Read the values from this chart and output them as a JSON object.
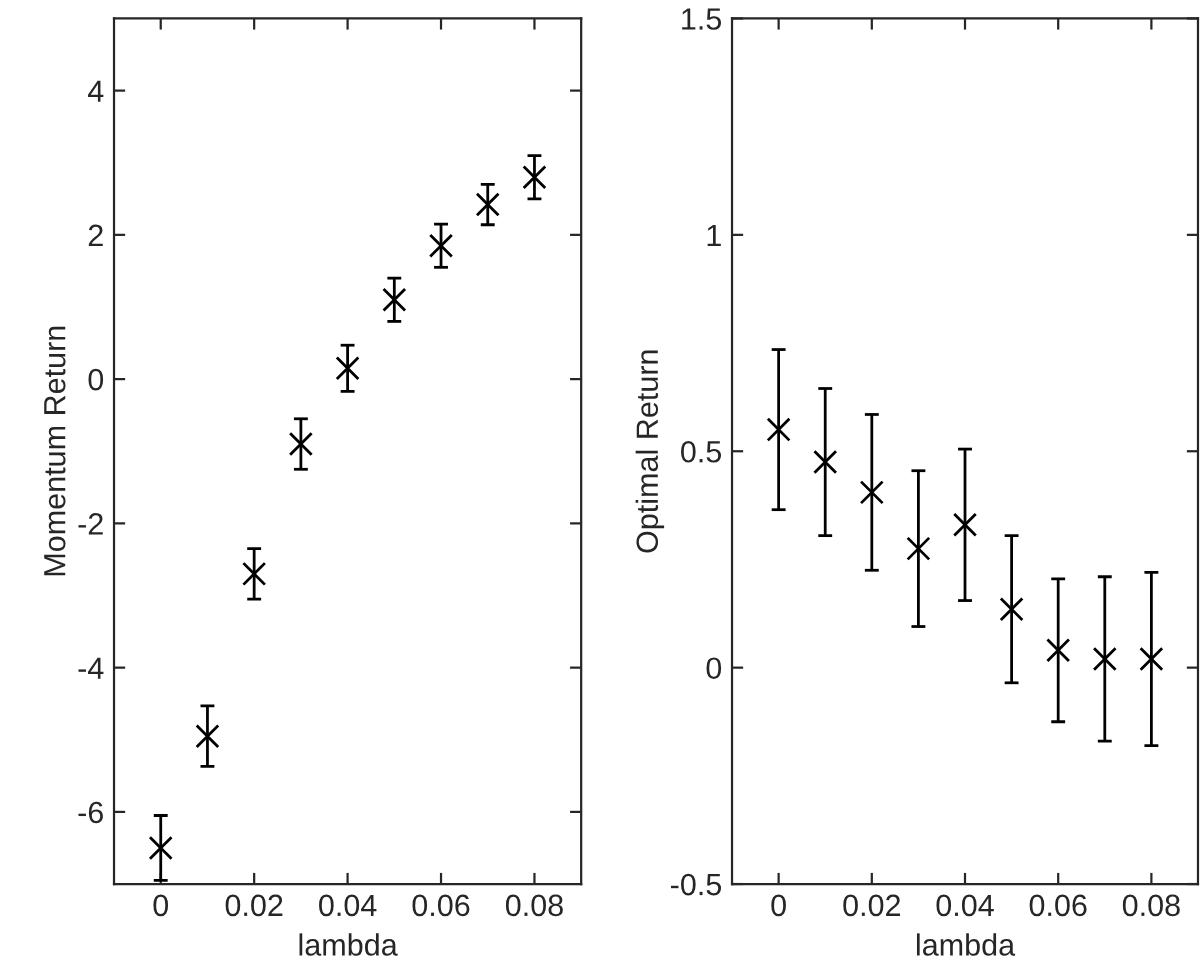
{
  "chart_data": [
    {
      "type": "scatter",
      "xlabel": "lambda",
      "ylabel": "Momentum Return",
      "x": [
        0,
        0.01,
        0.02,
        0.03,
        0.04,
        0.05,
        0.06,
        0.07,
        0.08
      ],
      "values": [
        -6.5,
        -4.95,
        -2.7,
        -0.9,
        0.15,
        1.1,
        1.85,
        2.42,
        2.8
      ],
      "errors": [
        0.45,
        0.42,
        0.35,
        0.35,
        0.32,
        0.3,
        0.3,
        0.28,
        0.3
      ],
      "color": "#000000",
      "marker": "cross",
      "xlim": [
        -0.01,
        0.09
      ],
      "xticks": [
        0,
        0.02,
        0.04,
        0.06,
        0.08
      ],
      "ylim": [
        -7,
        5
      ],
      "yticks": [
        -6,
        -4,
        -2,
        0,
        2,
        4
      ],
      "grid": false,
      "legend": false
    },
    {
      "type": "scatter",
      "xlabel": "lambda",
      "ylabel": "Optimal Return",
      "x": [
        0,
        0.01,
        0.02,
        0.03,
        0.04,
        0.05,
        0.06,
        0.07,
        0.08
      ],
      "values": [
        0.55,
        0.475,
        0.405,
        0.275,
        0.33,
        0.135,
        0.04,
        0.02,
        0.02
      ],
      "errors": [
        0.185,
        0.17,
        0.18,
        0.18,
        0.175,
        0.17,
        0.165,
        0.19,
        0.2
      ],
      "color": "#000000",
      "marker": "cross",
      "xlim": [
        -0.01,
        0.09
      ],
      "xticks": [
        0,
        0.02,
        0.04,
        0.06,
        0.08
      ],
      "ylim": [
        -0.5,
        1.5
      ],
      "yticks": [
        -0.5,
        0,
        0.5,
        1,
        1.5
      ],
      "grid": false,
      "legend": false
    }
  ]
}
